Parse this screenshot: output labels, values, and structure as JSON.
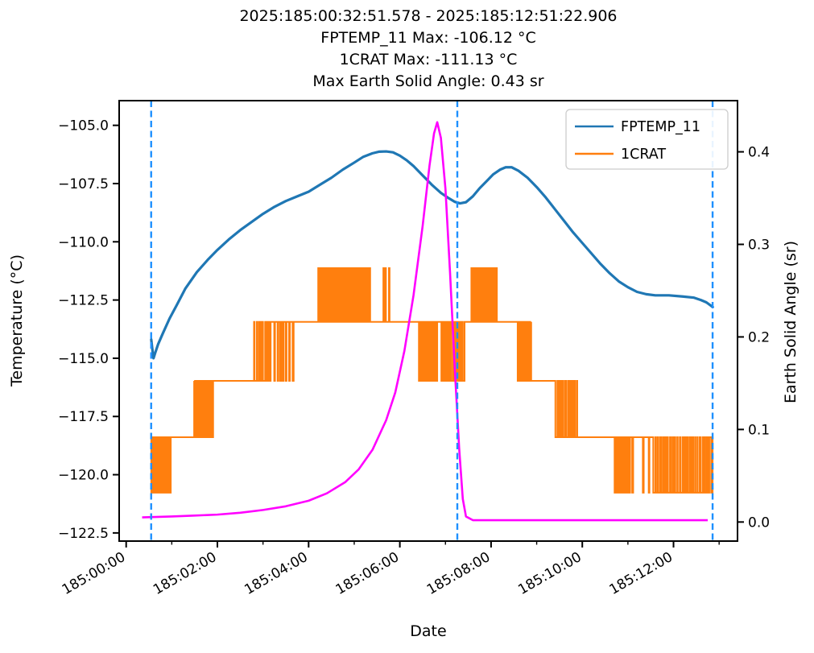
{
  "title": {
    "line1": "2025:185:00:32:51.578 - 2025:185:12:51:22.906",
    "line2": "FPTEMP_11 Max: -106.12 °C",
    "line3": "1CRAT Max: -111.13 °C",
    "line4": "Max Earth Solid Angle: 0.43 sr"
  },
  "axes": {
    "x": {
      "label": "Date",
      "lim": [
        -0.1536,
        13.403
      ],
      "major_ticks": [
        {
          "t": 0,
          "label": "185:00:00"
        },
        {
          "t": 2,
          "label": "185:02:00"
        },
        {
          "t": 4,
          "label": "185:04:00"
        },
        {
          "t": 6,
          "label": "185:06:00"
        },
        {
          "t": 8,
          "label": "185:08:00"
        },
        {
          "t": 10,
          "label": "185:10:00"
        },
        {
          "t": 12,
          "label": "185:12:00"
        }
      ],
      "minor_ticks": [
        1,
        3,
        5,
        7,
        9,
        11,
        13
      ]
    },
    "y_left": {
      "label": "Temperature (°C)",
      "lim": [
        -122.85,
        -103.94
      ],
      "ticks": [
        {
          "v": -105.0,
          "label": "−105.0"
        },
        {
          "v": -107.5,
          "label": "−107.5"
        },
        {
          "v": -110.0,
          "label": "−110.0"
        },
        {
          "v": -112.5,
          "label": "−112.5"
        },
        {
          "v": -115.0,
          "label": "−115.0"
        },
        {
          "v": -117.5,
          "label": "−117.5"
        },
        {
          "v": -120.0,
          "label": "−120.0"
        },
        {
          "v": -122.5,
          "label": "−122.5"
        }
      ]
    },
    "y_right": {
      "label": "Earth Solid Angle (sr)",
      "lim": [
        -0.0206,
        0.4553
      ],
      "ticks": [
        {
          "v": 0.0,
          "label": "0.0"
        },
        {
          "v": 0.1,
          "label": "0.1"
        },
        {
          "v": 0.2,
          "label": "0.2"
        },
        {
          "v": 0.3,
          "label": "0.3"
        },
        {
          "v": 0.4,
          "label": "0.4"
        }
      ]
    }
  },
  "legend": {
    "items": [
      {
        "label": "FPTEMP_11",
        "color": "#1f77b4"
      },
      {
        "label": "1CRAT",
        "color": "#ff7f0e"
      }
    ]
  },
  "colors": {
    "fptemp": "#1f77b4",
    "crat": "#ff7f0e",
    "solid_angle": "#ff00ff",
    "event_line": "#1e90ff",
    "spine": "#000000"
  },
  "chart_data": {
    "type": "line",
    "title": "2025:185:00:32:51.578 - 2025:185:12:51:22.906",
    "xlabel": "Date",
    "ylabel_left": "Temperature (°C)",
    "ylabel_right": "Earth Solid Angle (sr)",
    "x_units": "hours since 2025:185:00:00:00",
    "stats": {
      "fptemp_11_max_c": -106.12,
      "crat_max_c": -111.13,
      "max_earth_solid_angle_sr": 0.43
    },
    "time_range": {
      "start": "2025:185:00:32:51.578",
      "end": "2025:185:12:51:22.906"
    },
    "event_lines": {
      "times": [
        0.548,
        7.26,
        12.857
      ]
    },
    "series": [
      {
        "name": "FPTEMP_11",
        "yaxis": "left",
        "color": "#1f77b4",
        "style": "line",
        "points": [
          [
            0.55,
            -114.2
          ],
          [
            0.57,
            -114.55
          ],
          [
            0.6,
            -115.0
          ],
          [
            0.64,
            -114.75
          ],
          [
            0.7,
            -114.4
          ],
          [
            0.8,
            -113.95
          ],
          [
            0.95,
            -113.3
          ],
          [
            1.1,
            -112.75
          ],
          [
            1.3,
            -112.0
          ],
          [
            1.55,
            -111.3
          ],
          [
            1.8,
            -110.75
          ],
          [
            2.0,
            -110.35
          ],
          [
            2.25,
            -109.9
          ],
          [
            2.5,
            -109.5
          ],
          [
            2.75,
            -109.15
          ],
          [
            3.0,
            -108.8
          ],
          [
            3.25,
            -108.5
          ],
          [
            3.5,
            -108.25
          ],
          [
            3.75,
            -108.05
          ],
          [
            4.0,
            -107.85
          ],
          [
            4.25,
            -107.55
          ],
          [
            4.5,
            -107.25
          ],
          [
            4.75,
            -106.9
          ],
          [
            5.0,
            -106.6
          ],
          [
            5.2,
            -106.35
          ],
          [
            5.4,
            -106.2
          ],
          [
            5.55,
            -106.13
          ],
          [
            5.7,
            -106.12
          ],
          [
            5.85,
            -106.16
          ],
          [
            6.0,
            -106.3
          ],
          [
            6.15,
            -106.5
          ],
          [
            6.3,
            -106.75
          ],
          [
            6.5,
            -107.15
          ],
          [
            6.7,
            -107.55
          ],
          [
            6.9,
            -107.9
          ],
          [
            7.05,
            -108.1
          ],
          [
            7.2,
            -108.28
          ],
          [
            7.32,
            -108.35
          ],
          [
            7.45,
            -108.3
          ],
          [
            7.6,
            -108.05
          ],
          [
            7.75,
            -107.7
          ],
          [
            7.9,
            -107.4
          ],
          [
            8.05,
            -107.1
          ],
          [
            8.2,
            -106.9
          ],
          [
            8.32,
            -106.8
          ],
          [
            8.45,
            -106.8
          ],
          [
            8.6,
            -106.95
          ],
          [
            8.8,
            -107.25
          ],
          [
            9.0,
            -107.65
          ],
          [
            9.2,
            -108.1
          ],
          [
            9.4,
            -108.6
          ],
          [
            9.6,
            -109.1
          ],
          [
            9.8,
            -109.6
          ],
          [
            10.0,
            -110.05
          ],
          [
            10.2,
            -110.5
          ],
          [
            10.4,
            -110.95
          ],
          [
            10.6,
            -111.35
          ],
          [
            10.8,
            -111.7
          ],
          [
            11.0,
            -111.95
          ],
          [
            11.2,
            -112.15
          ],
          [
            11.4,
            -112.25
          ],
          [
            11.6,
            -112.3
          ],
          [
            11.9,
            -112.3
          ],
          [
            12.2,
            -112.35
          ],
          [
            12.45,
            -112.4
          ],
          [
            12.6,
            -112.5
          ],
          [
            12.72,
            -112.6
          ],
          [
            12.86,
            -112.8
          ]
        ]
      },
      {
        "name": "1CRAT",
        "yaxis": "left",
        "color": "#ff7f0e",
        "style": "step-burst",
        "seed": 42,
        "levels": [
          -111.13,
          -113.44,
          -115.97,
          -118.39,
          -120.77
        ],
        "segments": [
          {
            "t0": 0.548,
            "t1": 0.98,
            "type": "burst",
            "hi": -118.39,
            "lo": -120.77,
            "base": "hi",
            "n": 24,
            "duty": 0.85
          },
          {
            "t0": 0.98,
            "t1": 1.49,
            "type": "flat",
            "v": -118.39
          },
          {
            "t0": 1.49,
            "t1": 1.91,
            "type": "burst",
            "hi": -115.97,
            "lo": -118.39,
            "base": "hi",
            "n": 18,
            "duty": 0.85
          },
          {
            "t0": 1.91,
            "t1": 2.79,
            "type": "flat",
            "v": -115.97
          },
          {
            "t0": 2.79,
            "t1": 3.07,
            "type": "burst",
            "hi": -113.44,
            "lo": -115.97,
            "base": "lo",
            "n": 6,
            "duty": 0.25
          },
          {
            "t0": 3.07,
            "t1": 3.69,
            "type": "burst",
            "hi": -113.44,
            "lo": -115.97,
            "base": "hi",
            "n": 9,
            "duty": 0.3
          },
          {
            "t0": 3.69,
            "t1": 4.21,
            "type": "flat",
            "v": -113.44
          },
          {
            "t0": 4.21,
            "t1": 5.35,
            "type": "burst",
            "hi": -111.13,
            "lo": -113.44,
            "base": "lo",
            "n": 30,
            "duty": 0.75
          },
          {
            "t0": 5.35,
            "t1": 5.6,
            "type": "flat",
            "v": -113.44
          },
          {
            "t0": 5.6,
            "t1": 5.8,
            "type": "burst",
            "hi": -111.13,
            "lo": -113.44,
            "base": "lo",
            "n": 3,
            "duty": 0.2
          },
          {
            "t0": 5.8,
            "t1": 6.41,
            "type": "flat",
            "v": -113.44
          },
          {
            "t0": 6.41,
            "t1": 6.82,
            "type": "burst",
            "hi": -113.44,
            "lo": -115.97,
            "base": "hi",
            "n": 14,
            "duty": 0.95
          },
          {
            "t0": 6.82,
            "t1": 6.9,
            "type": "flat",
            "v": -113.44
          },
          {
            "t0": 6.9,
            "t1": 7.42,
            "type": "burst",
            "hi": -113.44,
            "lo": -115.97,
            "base": "hi",
            "n": 12,
            "duty": 0.8
          },
          {
            "t0": 7.42,
            "t1": 7.56,
            "type": "flat",
            "v": -113.44
          },
          {
            "t0": 7.56,
            "t1": 8.13,
            "type": "burst",
            "hi": -111.13,
            "lo": -113.44,
            "base": "lo",
            "n": 20,
            "duty": 0.7
          },
          {
            "t0": 8.13,
            "t1": 8.58,
            "type": "flat",
            "v": -113.44
          },
          {
            "t0": 8.58,
            "t1": 8.88,
            "type": "burst",
            "hi": -113.44,
            "lo": -115.97,
            "base": "hi",
            "n": 10,
            "duty": 0.97
          },
          {
            "t0": 8.88,
            "t1": 9.41,
            "type": "flat",
            "v": -115.97
          },
          {
            "t0": 9.41,
            "t1": 9.89,
            "type": "burst",
            "hi": -115.97,
            "lo": -118.39,
            "base": "hi",
            "n": 12,
            "duty": 0.95
          },
          {
            "t0": 9.89,
            "t1": 10.7,
            "type": "flat",
            "v": -118.39
          },
          {
            "t0": 10.7,
            "t1": 11.05,
            "type": "burst",
            "hi": -118.39,
            "lo": -120.77,
            "base": "hi",
            "n": 8,
            "duty": 0.6
          },
          {
            "t0": 11.05,
            "t1": 11.55,
            "type": "burst",
            "hi": -118.39,
            "lo": -120.77,
            "base": "hi",
            "n": 3,
            "duty": 0.12
          },
          {
            "t0": 11.55,
            "t1": 12.857,
            "type": "burst",
            "hi": -118.39,
            "lo": -120.77,
            "base": "hi",
            "n": 24,
            "duty": 0.7
          }
        ]
      },
      {
        "name": "Earth Solid Angle",
        "yaxis": "right",
        "color": "#ff00ff",
        "style": "line",
        "points": [
          [
            0.35,
            0.005
          ],
          [
            1.0,
            0.006
          ],
          [
            1.5,
            0.007
          ],
          [
            2.0,
            0.008
          ],
          [
            2.5,
            0.01
          ],
          [
            3.0,
            0.013
          ],
          [
            3.5,
            0.017
          ],
          [
            4.0,
            0.023
          ],
          [
            4.4,
            0.031
          ],
          [
            4.8,
            0.043
          ],
          [
            5.1,
            0.057
          ],
          [
            5.4,
            0.078
          ],
          [
            5.7,
            0.11
          ],
          [
            5.9,
            0.14
          ],
          [
            6.1,
            0.185
          ],
          [
            6.3,
            0.245
          ],
          [
            6.5,
            0.32
          ],
          [
            6.65,
            0.385
          ],
          [
            6.75,
            0.42
          ],
          [
            6.82,
            0.432
          ],
          [
            6.9,
            0.415
          ],
          [
            7.0,
            0.36
          ],
          [
            7.1,
            0.27
          ],
          [
            7.2,
            0.17
          ],
          [
            7.3,
            0.08
          ],
          [
            7.38,
            0.025
          ],
          [
            7.45,
            0.006
          ],
          [
            7.6,
            0.002
          ],
          [
            9.0,
            0.002
          ],
          [
            11.0,
            0.002
          ],
          [
            12.75,
            0.002
          ]
        ]
      }
    ]
  }
}
